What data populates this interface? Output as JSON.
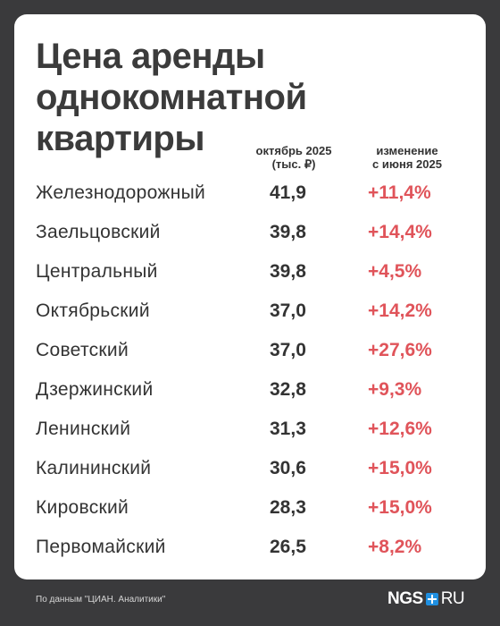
{
  "colors": {
    "background": "#3a3a3c",
    "card": "#ffffff",
    "text": "#333333",
    "change_positive": "#e0545a",
    "logo_accent": "#1f8fe0"
  },
  "title_lines": [
    "Цена аренды",
    "однокомнатной",
    "квартиры"
  ],
  "headers": {
    "price": [
      "октябрь 2025",
      "(тыс. ₽)"
    ],
    "change": [
      "изменение",
      "с июня 2025"
    ]
  },
  "chart_data": {
    "type": "table",
    "title": "Цена аренды однокомнатной квартиры",
    "columns": [
      "",
      "октябрь 2025 (тыс. ₽)",
      "изменение с июня 2025"
    ],
    "rows": [
      {
        "district": "Железнодорожный",
        "price": "41,9",
        "change": "+11,4%"
      },
      {
        "district": "Заельцовский",
        "price": "39,8",
        "change": "+14,4%"
      },
      {
        "district": "Центральный",
        "price": "39,8",
        "change": "+4,5%"
      },
      {
        "district": "Октябрьский",
        "price": "37,0",
        "change": "+14,2%"
      },
      {
        "district": "Советский",
        "price": "37,0",
        "change": "+27,6%"
      },
      {
        "district": "Дзержинский",
        "price": "32,8",
        "change": "+9,3%"
      },
      {
        "district": "Ленинский",
        "price": "31,3",
        "change": "+12,6%"
      },
      {
        "district": "Калининский",
        "price": "30,6",
        "change": "+15,0%"
      },
      {
        "district": "Кировский",
        "price": "28,3",
        "change": "+15,0%"
      },
      {
        "district": "Первомайский",
        "price": "26,5",
        "change": "+8,2%"
      }
    ]
  },
  "footer": {
    "source": "По данным \"ЦИАН. Аналитики\"",
    "logo_left": "NGS",
    "logo_right": "RU",
    "logo_icon": "plus-square-icon"
  }
}
